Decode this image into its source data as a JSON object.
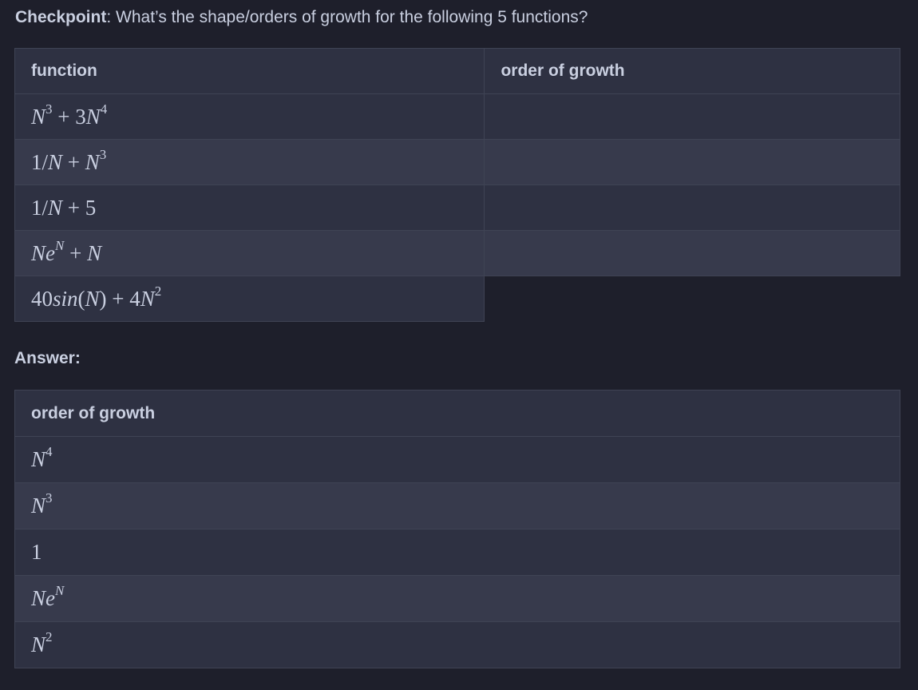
{
  "checkpoint": {
    "label": "Checkpoint",
    "question": ": What’s the shape/orders of growth for the following 5 functions?"
  },
  "question_table": {
    "headers": [
      "function",
      "order of growth"
    ],
    "rows": [
      {
        "function": "N^3 + 3N^4",
        "order": ""
      },
      {
        "function": "1/N + N^3",
        "order": ""
      },
      {
        "function": "1/N + 5",
        "order": ""
      },
      {
        "function": "Ne^N + N",
        "order": ""
      },
      {
        "function": "40sin(N) + 4N^2",
        "order": ""
      }
    ]
  },
  "answer": {
    "label": "Answer:",
    "header": "order of growth",
    "rows": [
      "N^4",
      "N^3",
      "1",
      "Ne^N",
      "N^2"
    ]
  }
}
